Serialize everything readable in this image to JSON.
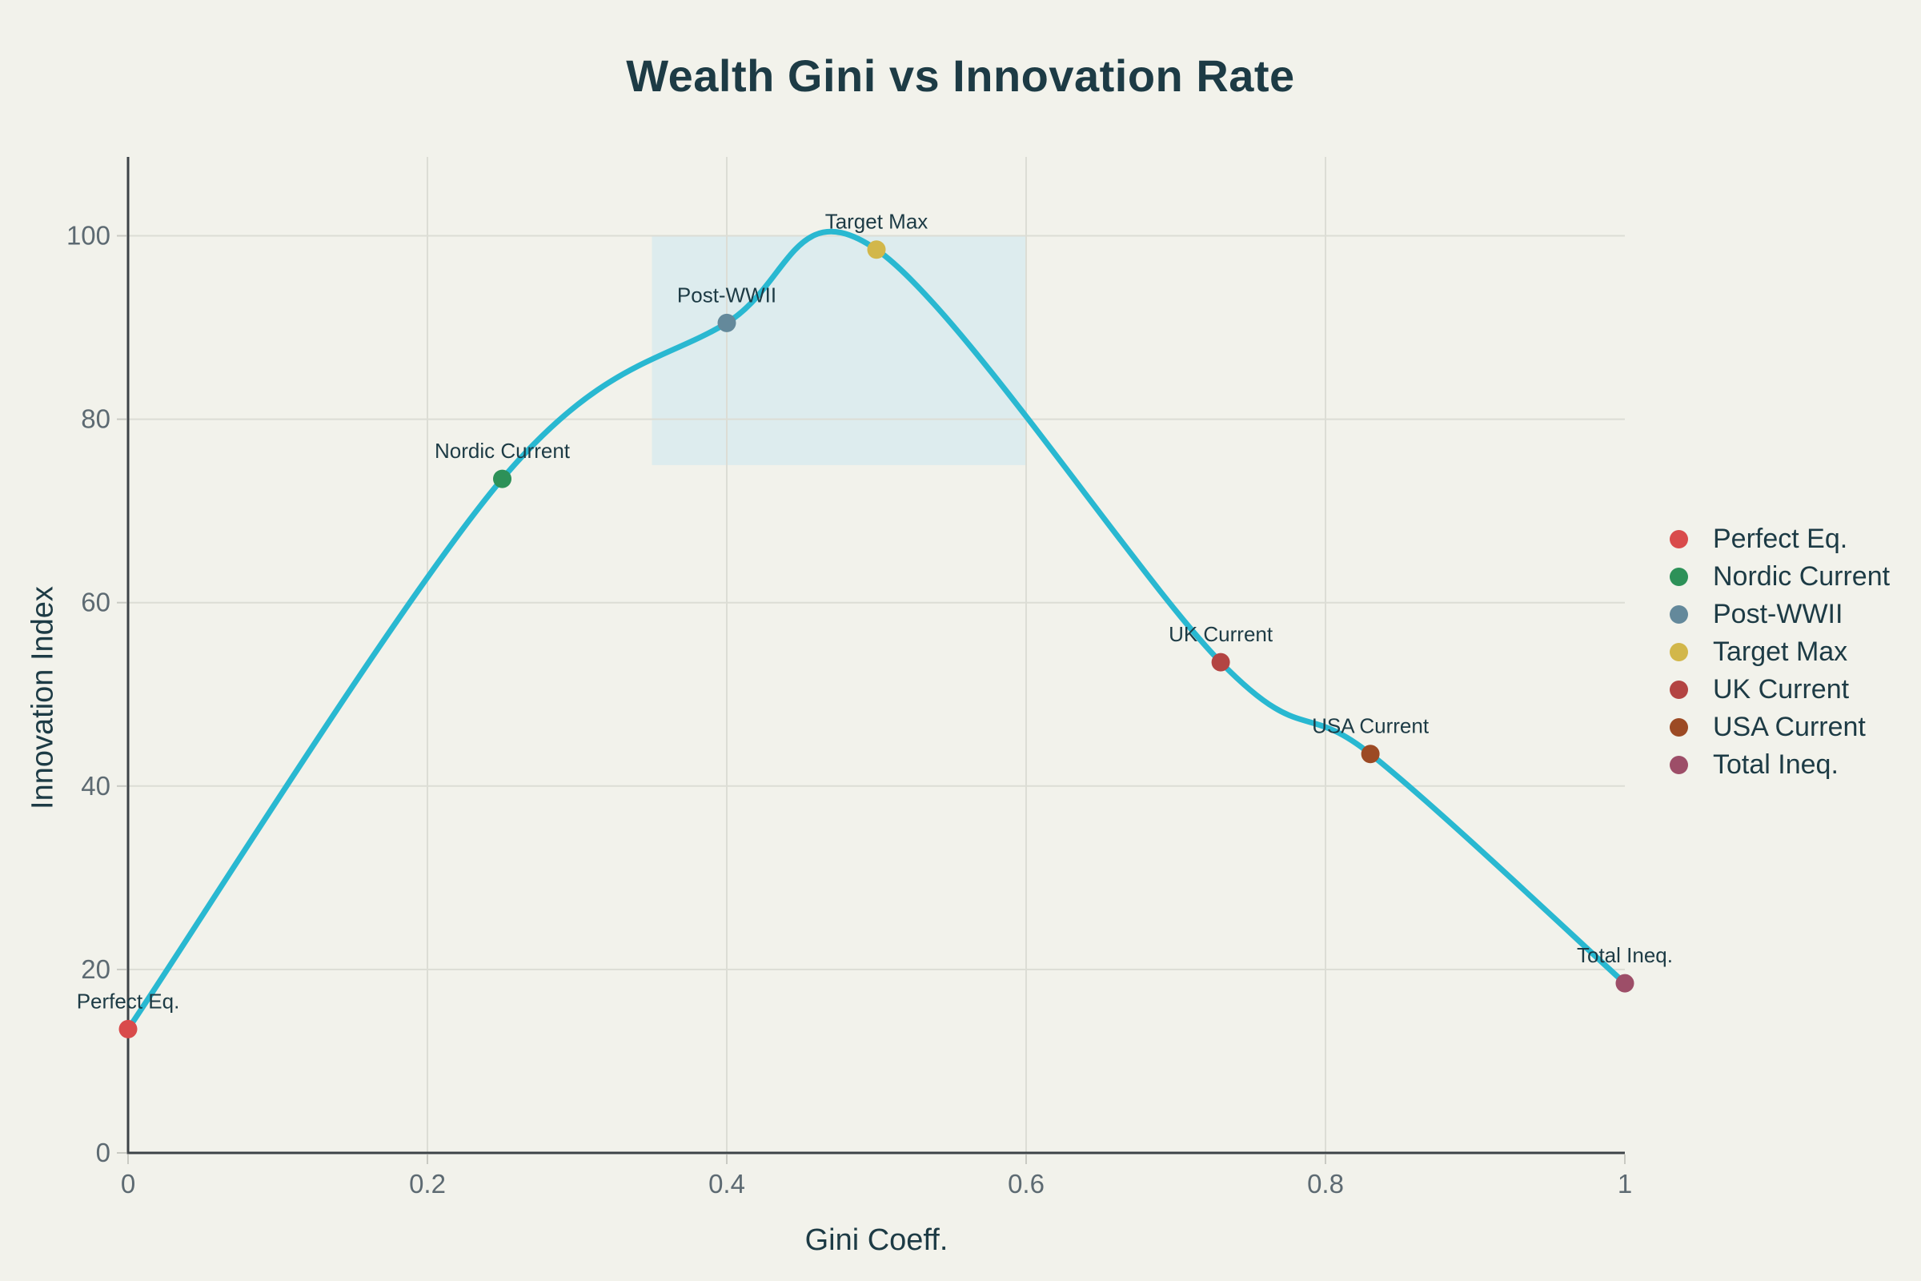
{
  "colors": {
    "background": "#f2f2eb",
    "title_text": "#1d3b45",
    "tick_text": "#5d6a72",
    "axis_line": "#3d4347",
    "gridline": "#dcddd5",
    "tick_mark": "#c9cac3",
    "curve": "#29b8d1",
    "region_fill": "#ddecee",
    "point_label_text": "#1d3b45"
  },
  "chart_data": {
    "type": "line",
    "title": "Wealth Gini vs Innovation Rate",
    "xlabel": "Gini Coeff.",
    "ylabel": "Innovation Index",
    "xlim": [
      0,
      1
    ],
    "ylim": [
      0,
      108.6
    ],
    "grid": true,
    "legend_position": "right",
    "x_ticks": [
      {
        "value": 0,
        "label": "0"
      },
      {
        "value": 0.2,
        "label": "0.2"
      },
      {
        "value": 0.4,
        "label": "0.4"
      },
      {
        "value": 0.6,
        "label": "0.6"
      },
      {
        "value": 0.8,
        "label": "0.8"
      },
      {
        "value": 1,
        "label": "1"
      }
    ],
    "y_ticks": [
      {
        "value": 0,
        "label": "0"
      },
      {
        "value": 20,
        "label": "20"
      },
      {
        "value": 40,
        "label": "40"
      },
      {
        "value": 60,
        "label": "60"
      },
      {
        "value": 80,
        "label": "80"
      },
      {
        "value": 100,
        "label": "100"
      }
    ],
    "highlight_region": {
      "x0": 0.35,
      "x1": 0.6,
      "y0": 75,
      "y1": 100
    },
    "line_width": 7,
    "marker_radius": 11.5,
    "points": [
      {
        "label": "Perfect Eq.",
        "x": 0.0,
        "y": 13.5,
        "color": "#d94b4b"
      },
      {
        "label": "Nordic Current",
        "x": 0.25,
        "y": 73.5,
        "color": "#2d9158"
      },
      {
        "label": "Post-WWII",
        "x": 0.4,
        "y": 90.5,
        "color": "#64899b"
      },
      {
        "label": "Target Max",
        "x": 0.5,
        "y": 98.5,
        "color": "#d2b74a"
      },
      {
        "label": "UK Current",
        "x": 0.73,
        "y": 53.5,
        "color": "#b34442"
      },
      {
        "label": "USA Current",
        "x": 0.83,
        "y": 43.5,
        "color": "#9c4a24"
      },
      {
        "label": "Total Ineq.",
        "x": 1.0,
        "y": 18.5,
        "color": "#9d4e68"
      }
    ],
    "legend_entries": [
      "Perfect Eq.",
      "Nordic Current",
      "Post-WWII",
      "Target Max",
      "UK Current",
      "USA Current",
      "Total Ineq."
    ]
  }
}
